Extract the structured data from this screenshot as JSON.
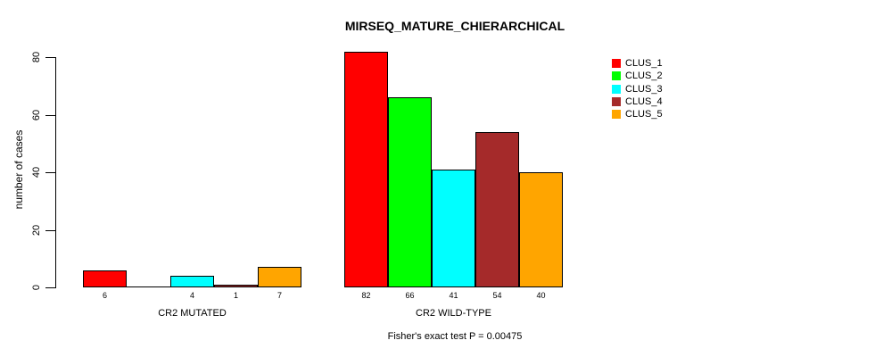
{
  "chart_data": {
    "type": "bar",
    "title": "MIRSEQ_MATURE_CHIERARCHICAL",
    "ylabel": "number of cases",
    "xlabel": "",
    "categories": [
      "CR2 MUTATED",
      "CR2 WILD-TYPE"
    ],
    "series": [
      {
        "name": "CLUS_1",
        "color": "#ff0000",
        "values": [
          6,
          82
        ]
      },
      {
        "name": "CLUS_2",
        "color": "#00ff00",
        "values": [
          0,
          66
        ]
      },
      {
        "name": "CLUS_3",
        "color": "#00ffff",
        "values": [
          4,
          41
        ]
      },
      {
        "name": "CLUS_4",
        "color": "#a52a2a",
        "values": [
          1,
          54
        ]
      },
      {
        "name": "CLUS_5",
        "color": "#ffa500",
        "values": [
          7,
          40
        ]
      }
    ],
    "bar_value_labels": [
      [
        "6",
        "",
        "4",
        "1",
        "7"
      ],
      [
        "82",
        "66",
        "41",
        "54",
        "40"
      ]
    ],
    "yticks": [
      0,
      20,
      40,
      60,
      80
    ],
    "ylim": [
      0,
      86
    ],
    "grid": false,
    "legend_position": "right",
    "annotation": "Fisher's exact test P = 0.00475"
  }
}
